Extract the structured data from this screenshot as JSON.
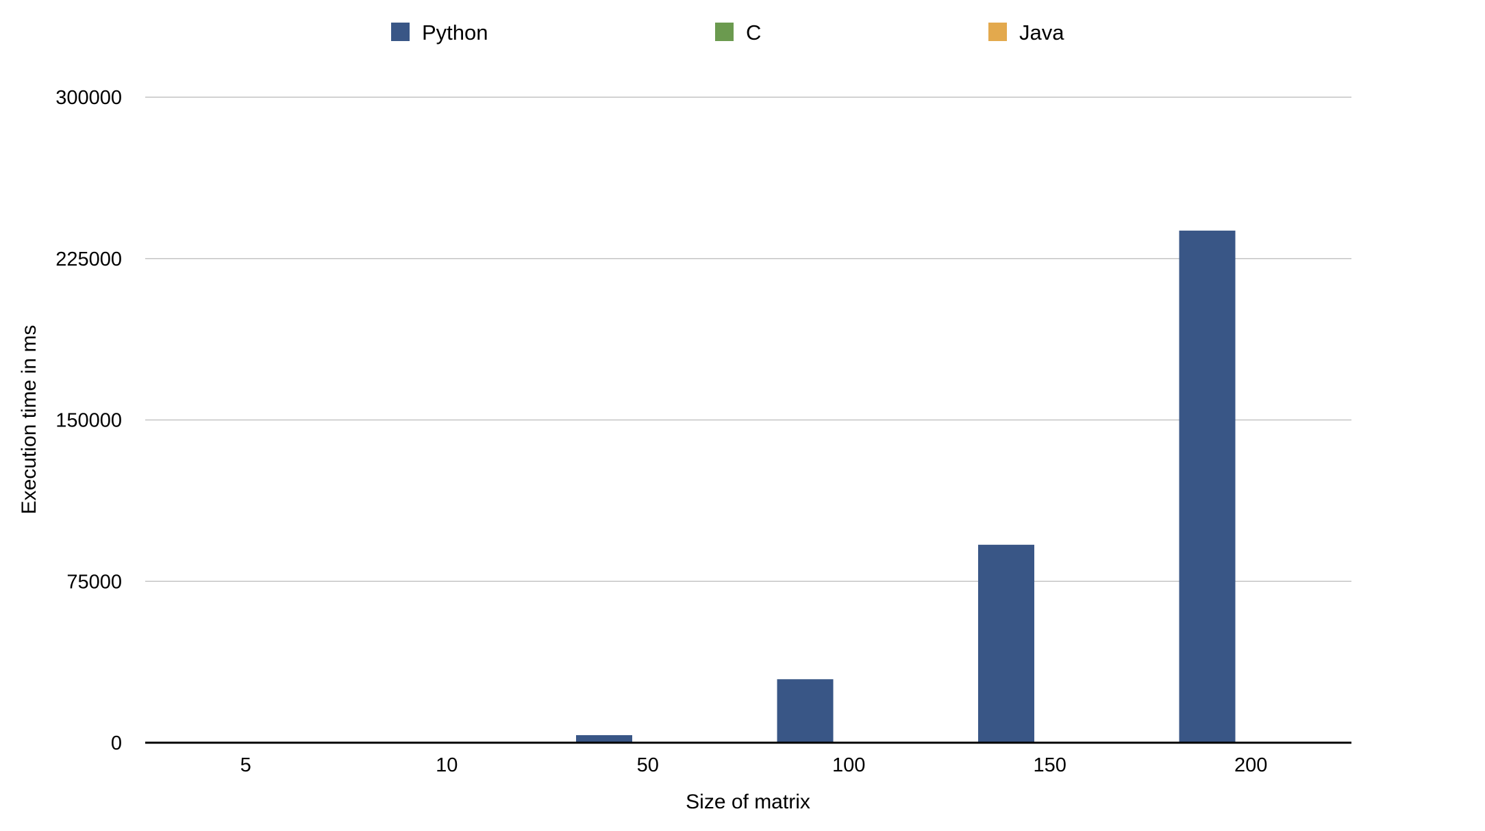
{
  "chart_data": {
    "type": "bar",
    "title": "",
    "xlabel": "Size of matrix",
    "ylabel": "Execution time in ms",
    "categories": [
      "5",
      "10",
      "50",
      "100",
      "150",
      "200"
    ],
    "ylim": [
      0,
      300000
    ],
    "yticks": [
      "0",
      "75000",
      "150000",
      "225000",
      "300000"
    ],
    "ytick_values": [
      0,
      75000,
      150000,
      225000,
      300000
    ],
    "grid": true,
    "legend_position": "top",
    "series": [
      {
        "name": "Python",
        "color": "#395686",
        "values": [
          20,
          250,
          3500,
          29500,
          92000,
          238000
        ]
      },
      {
        "name": "C",
        "color": "#6b9a4f",
        "values": [
          0,
          0,
          0,
          0,
          0,
          0
        ]
      },
      {
        "name": "Java",
        "color": "#e3a94d",
        "values": [
          0,
          0,
          0,
          0,
          0,
          0
        ]
      }
    ]
  }
}
